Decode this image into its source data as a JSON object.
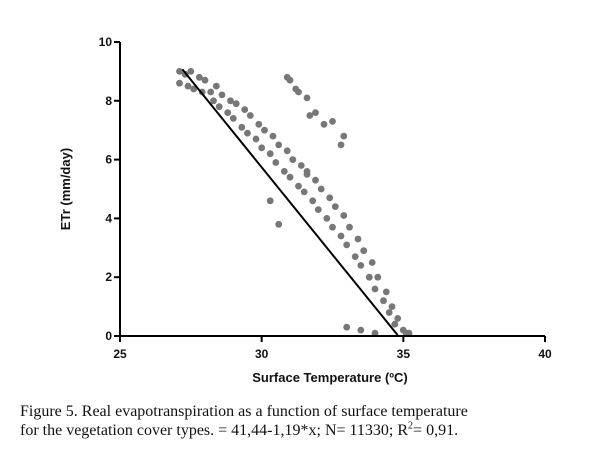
{
  "chart_data": {
    "type": "scatter",
    "xlabel": "Surface Temperature (ºC)",
    "ylabel": "ETr (mm/day)",
    "xlim": [
      25,
      40
    ],
    "ylim": [
      0,
      10
    ],
    "x_ticks": [
      "25",
      "30",
      "35",
      "40"
    ],
    "y_ticks": [
      "0",
      "2",
      "4",
      "6",
      "8",
      "10"
    ],
    "point_color": "#777777",
    "line_color": "#000000",
    "regression": {
      "intercept": 41.44,
      "slope": -1.19,
      "x_range": [
        27.2,
        34.8
      ]
    },
    "series": [
      {
        "points": [
          [
            27.1,
            9.0
          ],
          [
            27.1,
            8.6
          ],
          [
            27.3,
            8.9
          ],
          [
            27.4,
            8.5
          ],
          [
            27.5,
            9.0
          ],
          [
            27.6,
            8.4
          ],
          [
            27.8,
            8.8
          ],
          [
            27.9,
            8.3
          ],
          [
            28.0,
            8.7
          ],
          [
            28.2,
            8.3
          ],
          [
            28.3,
            8.0
          ],
          [
            28.4,
            8.5
          ],
          [
            28.5,
            7.8
          ],
          [
            28.6,
            8.2
          ],
          [
            28.8,
            7.6
          ],
          [
            28.9,
            8.0
          ],
          [
            29.0,
            7.4
          ],
          [
            29.1,
            7.9
          ],
          [
            29.3,
            7.1
          ],
          [
            29.4,
            7.7
          ],
          [
            29.5,
            6.9
          ],
          [
            29.6,
            7.5
          ],
          [
            29.8,
            6.7
          ],
          [
            29.9,
            7.2
          ],
          [
            30.0,
            6.4
          ],
          [
            30.1,
            7.0
          ],
          [
            30.3,
            6.2
          ],
          [
            30.4,
            6.8
          ],
          [
            30.5,
            5.9
          ],
          [
            30.6,
            6.5
          ],
          [
            30.8,
            5.6
          ],
          [
            30.9,
            6.3
          ],
          [
            31.0,
            5.4
          ],
          [
            31.1,
            6.0
          ],
          [
            31.3,
            5.1
          ],
          [
            31.4,
            5.8
          ],
          [
            31.5,
            4.9
          ],
          [
            31.6,
            5.5
          ],
          [
            31.8,
            4.6
          ],
          [
            31.9,
            5.3
          ],
          [
            32.0,
            4.3
          ],
          [
            32.1,
            5.0
          ],
          [
            32.3,
            4.0
          ],
          [
            32.4,
            4.7
          ],
          [
            32.5,
            3.7
          ],
          [
            32.6,
            4.4
          ],
          [
            32.8,
            3.4
          ],
          [
            32.9,
            4.1
          ],
          [
            33.0,
            3.1
          ],
          [
            33.1,
            3.7
          ],
          [
            33.3,
            2.7
          ],
          [
            33.4,
            3.3
          ],
          [
            33.5,
            2.4
          ],
          [
            33.6,
            2.9
          ],
          [
            33.8,
            2.0
          ],
          [
            33.9,
            2.5
          ],
          [
            34.0,
            1.6
          ],
          [
            34.1,
            2.0
          ],
          [
            34.3,
            1.2
          ],
          [
            34.4,
            1.5
          ],
          [
            34.5,
            0.8
          ],
          [
            34.6,
            1.0
          ],
          [
            34.7,
            0.4
          ],
          [
            34.8,
            0.6
          ],
          [
            35.0,
            0.2
          ],
          [
            35.1,
            0.1
          ],
          [
            35.2,
            0.1
          ],
          [
            33.0,
            0.3
          ],
          [
            33.5,
            0.2
          ],
          [
            34.0,
            0.1
          ],
          [
            30.9,
            8.8
          ],
          [
            31.0,
            8.7
          ],
          [
            31.2,
            8.4
          ],
          [
            31.3,
            8.3
          ],
          [
            31.6,
            8.1
          ],
          [
            31.7,
            7.5
          ],
          [
            31.9,
            7.6
          ],
          [
            32.2,
            7.2
          ],
          [
            32.5,
            7.3
          ],
          [
            32.8,
            6.5
          ],
          [
            32.9,
            6.8
          ],
          [
            31.6,
            5.6
          ],
          [
            30.6,
            3.8
          ],
          [
            30.3,
            4.6
          ]
        ]
      }
    ]
  },
  "caption": {
    "line1": "Figure 5. Real evapotranspiration as a function of surface temperature",
    "line2_main": "for the vegetation cover types.  = 41,44-1,19*x; N= 11330; R",
    "line2_sup": "2",
    "line2_end": "= 0,91."
  }
}
